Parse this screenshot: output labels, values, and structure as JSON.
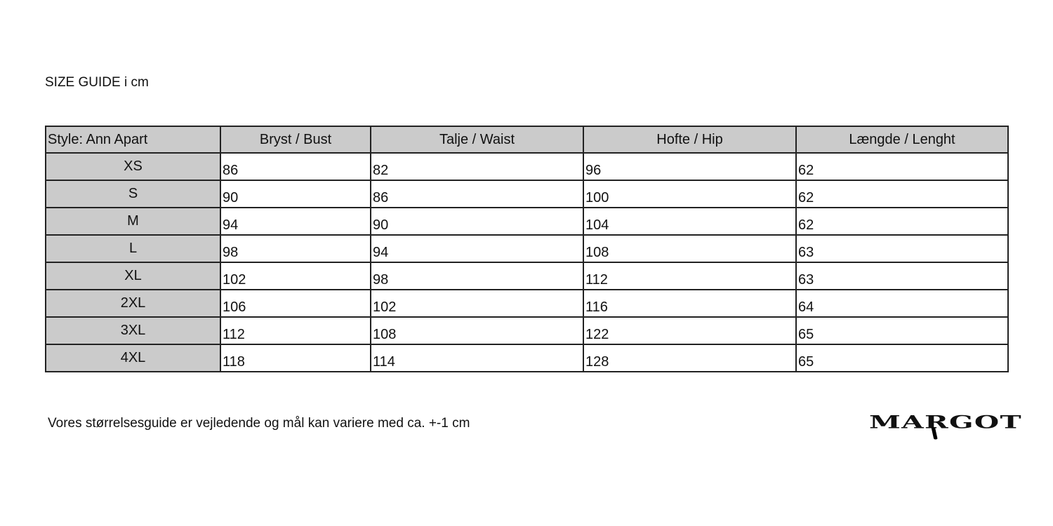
{
  "title": "SIZE GUIDE i cm",
  "table": {
    "headers": [
      "Style: Ann Apart",
      "Bryst / Bust",
      "Talje / Waist",
      "Hofte / Hip",
      "Længde / Lenght"
    ],
    "rows": [
      [
        "XS",
        "86",
        "82",
        "96",
        "62"
      ],
      [
        "S",
        "90",
        "86",
        "100",
        "62"
      ],
      [
        "M",
        "94",
        "90",
        "104",
        "62"
      ],
      [
        "L",
        "98",
        "94",
        "108",
        "63"
      ],
      [
        "XL",
        "102",
        "98",
        "112",
        "63"
      ],
      [
        "2XL",
        "106",
        "102",
        "116",
        "64"
      ],
      [
        "3XL",
        "112",
        "108",
        "122",
        "65"
      ],
      [
        "4XL",
        "118",
        "114",
        "128",
        "65"
      ]
    ]
  },
  "note": "Vores størrelsesguide er vejledende og mål kan variere med ca. +-1 cm",
  "logo": "MARGOT",
  "colors": {
    "header_bg": "#cbcbcb",
    "border": "#222222"
  }
}
